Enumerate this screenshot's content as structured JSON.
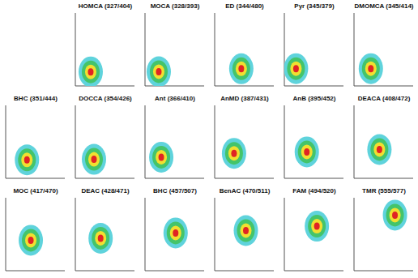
{
  "chart_data": [
    {
      "type": "scatter",
      "title": "HOMCA (327/404)",
      "x": [
        404
      ],
      "values": [
        327
      ],
      "xlim": [
        300,
        700
      ],
      "ylim": [
        250,
        650
      ],
      "xticks": [
        300,
        400,
        500,
        600,
        700
      ],
      "yticks": [
        250,
        350,
        450,
        550,
        650
      ],
      "tick_labels": false,
      "grid": false,
      "marker": "heat"
    },
    {
      "type": "scatter",
      "title": "MOCA (328/393)",
      "x": [
        393
      ],
      "values": [
        328
      ],
      "xlim": [
        300,
        700
      ],
      "ylim": [
        250,
        650
      ],
      "xticks": [
        300,
        400,
        500,
        600,
        700
      ],
      "yticks": [
        250,
        350,
        450,
        550,
        650
      ],
      "tick_labels": false,
      "grid": false,
      "marker": "heat"
    },
    {
      "type": "scatter",
      "title": "ED (344/480)",
      "x": [
        480
      ],
      "values": [
        344
      ],
      "xlim": [
        300,
        700
      ],
      "ylim": [
        250,
        650
      ],
      "xticks": [
        300,
        400,
        500,
        600,
        700
      ],
      "yticks": [
        250,
        350,
        450,
        550,
        650
      ],
      "tick_labels": false,
      "grid": false,
      "marker": "heat"
    },
    {
      "type": "scatter",
      "title": "Pyr (345/379)",
      "x": [
        379
      ],
      "values": [
        345
      ],
      "xlim": [
        300,
        700
      ],
      "ylim": [
        250,
        650
      ],
      "xticks": [
        300,
        400,
        500,
        600,
        700
      ],
      "yticks": [
        250,
        350,
        450,
        550,
        650
      ],
      "tick_labels": false,
      "grid": false,
      "marker": "heat"
    },
    {
      "type": "scatter",
      "title": "DMOMCA (345/414)",
      "x": [
        414
      ],
      "values": [
        345
      ],
      "xlim": [
        300,
        700
      ],
      "ylim": [
        250,
        650
      ],
      "xticks": [
        300,
        400,
        500,
        600,
        700
      ],
      "yticks": [
        250,
        350,
        450,
        550,
        650
      ],
      "tick_labels": false,
      "grid": false,
      "marker": "heat"
    },
    {
      "type": "scatter",
      "title": "BHC (351/444)",
      "x": [
        444
      ],
      "values": [
        351
      ],
      "xlim": [
        300,
        700
      ],
      "ylim": [
        250,
        650
      ],
      "xticks": [
        300,
        400,
        500,
        600,
        700
      ],
      "yticks": [
        250,
        350,
        450,
        550,
        650
      ],
      "tick_labels": false,
      "grid": false,
      "marker": "heat"
    },
    {
      "type": "scatter",
      "title": "DOCCA (354/426)",
      "x": [
        426
      ],
      "values": [
        354
      ],
      "xlim": [
        300,
        700
      ],
      "ylim": [
        250,
        650
      ],
      "xticks": [
        300,
        400,
        500,
        600,
        700
      ],
      "yticks": [
        250,
        350,
        450,
        550,
        650
      ],
      "tick_labels": false,
      "grid": false,
      "marker": "heat"
    },
    {
      "type": "scatter",
      "title": "Ant (366/410)",
      "x": [
        410
      ],
      "values": [
        366
      ],
      "xlim": [
        300,
        700
      ],
      "ylim": [
        250,
        650
      ],
      "xticks": [
        300,
        400,
        500,
        600,
        700
      ],
      "yticks": [
        250,
        350,
        450,
        550,
        650
      ],
      "tick_labels": false,
      "grid": false,
      "marker": "heat"
    },
    {
      "type": "scatter",
      "title": "AnMD (387/431)",
      "x": [
        431
      ],
      "values": [
        387
      ],
      "xlim": [
        300,
        700
      ],
      "ylim": [
        250,
        650
      ],
      "xticks": [
        300,
        400,
        500,
        600,
        700
      ],
      "yticks": [
        250,
        350,
        450,
        550,
        650
      ],
      "tick_labels": false,
      "grid": false,
      "marker": "heat"
    },
    {
      "type": "scatter",
      "title": "AnB (395/452)",
      "x": [
        452
      ],
      "values": [
        395
      ],
      "xlim": [
        300,
        700
      ],
      "ylim": [
        250,
        650
      ],
      "xticks": [
        300,
        400,
        500,
        600,
        700
      ],
      "yticks": [
        250,
        350,
        450,
        550,
        650
      ],
      "tick_labels": false,
      "grid": false,
      "marker": "heat"
    },
    {
      "type": "scatter",
      "title": "DEACA (408/472)",
      "x": [
        472
      ],
      "values": [
        408
      ],
      "xlim": [
        300,
        700
      ],
      "ylim": [
        250,
        650
      ],
      "xticks": [
        300,
        400,
        500,
        600,
        700
      ],
      "yticks": [
        250,
        350,
        450,
        550,
        650
      ],
      "tick_labels": false,
      "grid": false,
      "marker": "heat"
    },
    {
      "type": "scatter",
      "title": "MOC (417/470)",
      "x": [
        470
      ],
      "values": [
        417
      ],
      "xlim": [
        300,
        700
      ],
      "ylim": [
        250,
        650
      ],
      "xticks": [
        300,
        400,
        500,
        600,
        700
      ],
      "yticks": [
        250,
        350,
        450,
        550,
        650
      ],
      "tick_labels": false,
      "grid": false,
      "marker": "heat"
    },
    {
      "type": "scatter",
      "title": "DEAC (428/471)",
      "x": [
        471
      ],
      "values": [
        428
      ],
      "xlim": [
        300,
        700
      ],
      "ylim": [
        250,
        650
      ],
      "xticks": [
        300,
        400,
        500,
        600,
        700
      ],
      "yticks": [
        250,
        350,
        450,
        550,
        650
      ],
      "tick_labels": false,
      "grid": false,
      "marker": "heat"
    },
    {
      "type": "scatter",
      "title": "BHC (457/507)",
      "x": [
        507
      ],
      "values": [
        457
      ],
      "xlim": [
        300,
        700
      ],
      "ylim": [
        250,
        650
      ],
      "xticks": [
        300,
        400,
        500,
        600,
        700
      ],
      "yticks": [
        250,
        350,
        450,
        550,
        650
      ],
      "tick_labels": false,
      "grid": false,
      "marker": "heat"
    },
    {
      "type": "scatter",
      "title": "BenAC (470/511)",
      "x": [
        511
      ],
      "values": [
        470
      ],
      "xlim": [
        300,
        700
      ],
      "ylim": [
        250,
        650
      ],
      "xticks": [
        300,
        400,
        500,
        600,
        700
      ],
      "yticks": [
        250,
        350,
        450,
        550,
        650
      ],
      "tick_labels": false,
      "grid": false,
      "marker": "heat"
    },
    {
      "type": "scatter",
      "title": "FAM (494/520)",
      "x": [
        520
      ],
      "values": [
        494
      ],
      "xlim": [
        300,
        700
      ],
      "ylim": [
        250,
        650
      ],
      "xticks": [
        300,
        400,
        500,
        600,
        700
      ],
      "yticks": [
        250,
        350,
        450,
        550,
        650
      ],
      "tick_labels": false,
      "grid": false,
      "marker": "heat"
    },
    {
      "type": "scatter",
      "title": "TMR (555/577)",
      "x": [
        577
      ],
      "values": [
        555
      ],
      "xlim": [
        300,
        700
      ],
      "ylim": [
        250,
        650
      ],
      "xticks": [
        300,
        400,
        500,
        600,
        700
      ],
      "yticks": [
        250,
        350,
        450,
        550,
        650
      ],
      "tick_labels": false,
      "grid": false,
      "marker": "heat"
    }
  ]
}
